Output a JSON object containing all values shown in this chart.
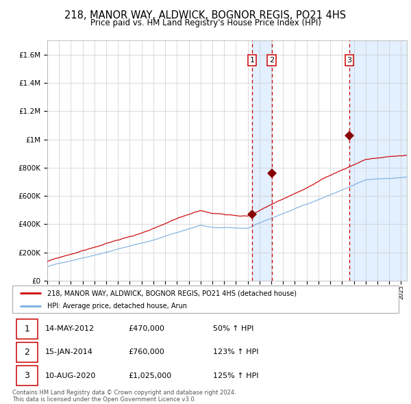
{
  "title": "218, MANOR WAY, ALDWICK, BOGNOR REGIS, PO21 4HS",
  "subtitle": "Price paid vs. HM Land Registry's House Price Index (HPI)",
  "title_fontsize": 10.5,
  "subtitle_fontsize": 8.5,
  "ylabel_ticks": [
    "£0",
    "£200K",
    "£400K",
    "£600K",
    "£800K",
    "£1M",
    "£1.2M",
    "£1.4M",
    "£1.6M"
  ],
  "ytick_values": [
    0,
    200000,
    400000,
    600000,
    800000,
    1000000,
    1200000,
    1400000,
    1600000
  ],
  "ylim": [
    0,
    1700000
  ],
  "xlim_start": 1995.0,
  "xlim_end": 2025.5,
  "sale_dates": [
    2012.37,
    2014.04,
    2020.61
  ],
  "sale_prices": [
    470000,
    760000,
    1025000
  ],
  "sale_labels": [
    "1",
    "2",
    "3"
  ],
  "legend_line1": "218, MANOR WAY, ALDWICK, BOGNOR REGIS, PO21 4HS (detached house)",
  "legend_line2": "HPI: Average price, detached house, Arun",
  "table_data": [
    [
      "1",
      "14-MAY-2012",
      "£470,000",
      "50% ↑ HPI"
    ],
    [
      "2",
      "15-JAN-2014",
      "£760,000",
      "123% ↑ HPI"
    ],
    [
      "3",
      "10-AUG-2020",
      "£1,025,000",
      "125% ↑ HPI"
    ]
  ],
  "footnote1": "Contains HM Land Registry data © Crown copyright and database right 2024.",
  "footnote2": "This data is licensed under the Open Government Licence v3.0.",
  "line_color_red": "#cc0000",
  "line_color_blue": "#7aade0",
  "bg_shade_color": "#ddeeff",
  "dashed_color": "#cc0000",
  "grid_color": "#cccccc",
  "sale_marker_color": "#880000"
}
